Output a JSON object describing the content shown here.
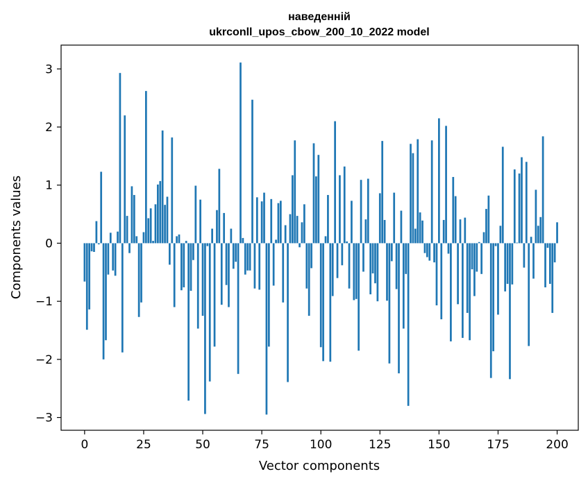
{
  "chart_data": {
    "type": "bar",
    "title_line1": "наведенній",
    "title_line2": "ukrconll_upos_cbow_200_10_2022 model",
    "xlabel": "Vector components",
    "ylabel": "Components values",
    "xlim": [
      -9.95,
      208.95
    ],
    "ylim": [
      -3.22,
      3.41
    ],
    "xticks": [
      0,
      25,
      50,
      75,
      100,
      125,
      150,
      175,
      200
    ],
    "yticks": [
      -3,
      -2,
      -1,
      0,
      1,
      2,
      3
    ],
    "x_tick_labels": [
      "0",
      "25",
      "50",
      "75",
      "100",
      "125",
      "150",
      "175",
      "200"
    ],
    "y_tick_labels": [
      "−3",
      "−2",
      "−1",
      "0",
      "1",
      "2",
      "3"
    ],
    "bar_color": "#1f77b4",
    "values": [
      -0.66,
      -1.49,
      -1.14,
      -0.14,
      -0.15,
      0.38,
      -0.02,
      1.23,
      -2.0,
      -1.67,
      -0.54,
      0.18,
      -0.47,
      -0.56,
      0.2,
      2.93,
      -1.88,
      2.2,
      0.47,
      -0.17,
      0.98,
      0.83,
      0.12,
      -1.27,
      -1.02,
      0.19,
      2.62,
      0.43,
      0.6,
      0.04,
      0.67,
      1.01,
      1.07,
      1.94,
      0.66,
      0.8,
      -0.37,
      1.82,
      -1.1,
      0.12,
      0.15,
      -0.81,
      -0.76,
      0.04,
      -2.71,
      -0.82,
      -0.29,
      0.99,
      -1.47,
      0.75,
      -1.25,
      -2.94,
      -0.05,
      -2.38,
      0.25,
      -1.78,
      0.57,
      1.28,
      -1.06,
      0.52,
      -0.72,
      -1.1,
      0.25,
      -0.44,
      -0.32,
      -2.25,
      3.11,
      0.09,
      -0.54,
      -0.47,
      -0.47,
      2.47,
      -0.78,
      0.79,
      -0.8,
      0.72,
      0.87,
      -2.95,
      -1.78,
      0.76,
      -0.73,
      0.06,
      0.69,
      0.73,
      -1.02,
      0.31,
      -2.39,
      0.5,
      1.17,
      1.77,
      0.47,
      -0.07,
      0.36,
      0.67,
      -0.78,
      -1.25,
      -0.43,
      1.72,
      1.15,
      1.52,
      -1.79,
      -2.03,
      0.12,
      0.83,
      -2.04,
      -0.91,
      2.1,
      -0.6,
      1.17,
      -0.38,
      1.32,
      0.03,
      -0.78,
      0.73,
      -0.98,
      -0.96,
      -1.85,
      1.09,
      -0.49,
      0.41,
      1.11,
      -0.88,
      -0.52,
      -0.69,
      -1.0,
      0.86,
      1.76,
      0.4,
      -0.99,
      -2.07,
      -0.31,
      0.87,
      -0.79,
      -2.24,
      0.56,
      -1.47,
      -0.53,
      -2.8,
      1.71,
      1.55,
      0.25,
      1.79,
      0.53,
      0.39,
      -0.17,
      -0.24,
      -0.3,
      1.77,
      -0.33,
      -1.07,
      2.15,
      -1.31,
      0.4,
      2.02,
      -0.18,
      -1.69,
      1.14,
      0.81,
      -1.05,
      0.41,
      -1.63,
      0.44,
      -1.2,
      -1.67,
      -0.45,
      -0.91,
      -0.49,
      0.02,
      -0.53,
      0.19,
      0.59,
      0.82,
      -2.32,
      -1.86,
      -0.05,
      -1.23,
      0.3,
      1.66,
      -0.83,
      -0.7,
      -2.34,
      -0.71,
      1.27,
      0.01,
      1.2,
      1.48,
      -0.42,
      1.4,
      -1.77,
      0.11,
      -0.61,
      0.92,
      0.3,
      0.45,
      1.84,
      -0.76,
      -0.08,
      -0.7,
      -1.2,
      -0.33,
      0.36
    ]
  }
}
